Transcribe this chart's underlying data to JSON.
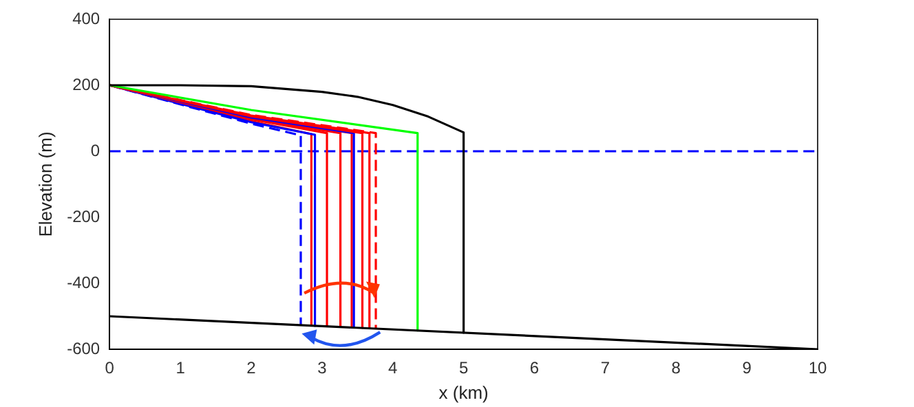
{
  "chart_data": {
    "type": "line",
    "xlabel": "x (km)",
    "ylabel": "Elevation (m)",
    "xlim": [
      0,
      10
    ],
    "ylim": [
      -600,
      400
    ],
    "xticks": [
      0,
      1,
      2,
      3,
      4,
      5,
      6,
      7,
      8,
      9,
      10
    ],
    "yticks": [
      -600,
      -400,
      -200,
      0,
      200,
      400
    ],
    "grid": false,
    "legend": false,
    "marker": "none",
    "series": [
      {
        "color": "#000000",
        "x": [
          0,
          10
        ],
        "values": [
          -500,
          -600
        ]
      },
      {
        "color": "#000000",
        "x": [
          0,
          1,
          2,
          3,
          3.5,
          4,
          4.5,
          5,
          5
        ],
        "values": [
          200,
          200,
          197,
          180,
          165,
          140,
          105,
          57,
          -550
        ]
      },
      {
        "color": "#00ff00",
        "x": [
          0,
          2,
          4.35,
          4.35
        ],
        "values": [
          200,
          125,
          55,
          -543
        ]
      },
      {
        "color": "#ff0000",
        "line_style": "dashed",
        "x": [
          0,
          2,
          3.76,
          3.76
        ],
        "values": [
          200,
          110,
          55,
          -537
        ]
      },
      {
        "color": "#ff0000",
        "x": [
          0,
          2,
          3.67,
          3.67
        ],
        "values": [
          200,
          108,
          55,
          -536
        ]
      },
      {
        "color": "#ff0000",
        "x": [
          0,
          2,
          3.57,
          3.57
        ],
        "values": [
          200,
          106,
          55,
          -535
        ]
      },
      {
        "color": "#0000ff",
        "x": [
          0,
          2,
          3.45,
          3.45
        ],
        "values": [
          200,
          102,
          55,
          -534
        ]
      },
      {
        "color": "#ff0000",
        "x": [
          0,
          2,
          3.42,
          3.42
        ],
        "values": [
          200,
          103,
          55,
          -534
        ]
      },
      {
        "color": "#ff0000",
        "x": [
          0,
          2,
          3.26,
          3.26
        ],
        "values": [
          200,
          100,
          55,
          -532
        ]
      },
      {
        "color": "#ff0000",
        "x": [
          0,
          2,
          3.07,
          3.07
        ],
        "values": [
          200,
          97,
          55,
          -530
        ]
      },
      {
        "color": "#0000ff",
        "x": [
          0,
          2,
          2.9,
          2.9
        ],
        "values": [
          200,
          88,
          50,
          -529
        ]
      },
      {
        "color": "#ff0000",
        "x": [
          0,
          2,
          2.85,
          2.85
        ],
        "values": [
          200,
          91,
          52,
          -528
        ]
      },
      {
        "color": "#0000ff",
        "line_style": "dashed",
        "x": [
          0,
          2,
          2.7,
          2.7
        ],
        "values": [
          200,
          84,
          48,
          -527
        ]
      }
    ],
    "ref_lines": [
      {
        "axis": "y",
        "value": 0,
        "color": "#0000ff",
        "line_style": "dashed"
      }
    ]
  }
}
